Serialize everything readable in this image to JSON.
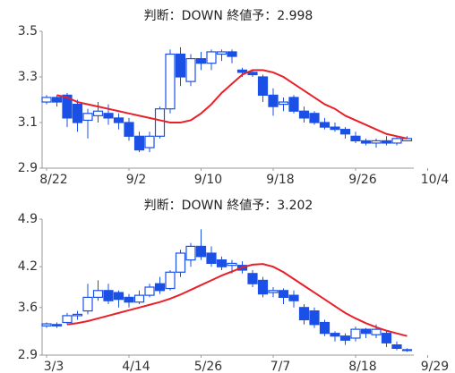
{
  "chart_data": [
    {
      "type": "candlestick",
      "title": "判断：DOWN 終値予：2.998",
      "color": "#1a50e6",
      "categories": [
        "8/22",
        null,
        null,
        null,
        null,
        null,
        null,
        null,
        "9/2",
        null,
        null,
        null,
        null,
        null,
        null,
        "9/10",
        null,
        null,
        null,
        null,
        null,
        null,
        "9/18",
        null,
        null,
        null,
        null,
        null,
        null,
        null,
        "9/26",
        null,
        null,
        null,
        null,
        null,
        null,
        "10/4"
      ],
      "open": [
        3.19,
        3.21,
        3.22,
        3.18,
        3.11,
        3.13,
        3.14,
        3.12,
        3.1,
        3.04,
        2.99,
        3.04,
        3.16,
        3.4,
        3.28,
        3.38,
        3.36,
        3.4,
        3.41,
        3.33,
        3.32,
        3.3,
        3.22,
        3.18,
        3.21,
        3.15,
        3.14,
        3.1,
        3.08,
        3.07,
        3.04,
        3.02,
        3.01,
        3.02,
        3.01,
        3.02,
        null,
        null
      ],
      "high": [
        3.22,
        3.22,
        3.23,
        3.2,
        3.16,
        3.19,
        3.18,
        3.14,
        3.12,
        3.06,
        3.06,
        3.17,
        3.42,
        3.43,
        3.4,
        3.41,
        3.42,
        3.42,
        3.42,
        3.34,
        3.33,
        3.31,
        3.25,
        3.21,
        3.22,
        3.17,
        3.15,
        3.12,
        3.1,
        3.08,
        3.06,
        3.03,
        3.03,
        3.04,
        3.04,
        3.04,
        null,
        null
      ],
      "low": [
        3.18,
        3.17,
        3.08,
        3.06,
        3.03,
        3.1,
        3.09,
        3.07,
        3.02,
        2.97,
        2.97,
        3.03,
        3.14,
        3.26,
        3.26,
        3.33,
        3.33,
        3.37,
        3.36,
        3.3,
        3.3,
        3.19,
        3.13,
        3.15,
        3.14,
        3.1,
        3.09,
        3.07,
        3.06,
        3.03,
        3.01,
        3.0,
        2.99,
        3.0,
        3.0,
        3.02,
        null,
        null
      ],
      "close": [
        3.21,
        3.19,
        3.12,
        3.1,
        3.14,
        3.15,
        3.12,
        3.1,
        3.04,
        2.98,
        3.04,
        3.16,
        3.4,
        3.3,
        3.38,
        3.36,
        3.41,
        3.41,
        3.39,
        3.32,
        3.31,
        3.22,
        3.17,
        3.19,
        3.15,
        3.12,
        3.1,
        3.08,
        3.07,
        3.05,
        3.02,
        3.01,
        3.02,
        3.01,
        3.03,
        3.03,
        null,
        null
      ],
      "line": {
        "color": "#e8202a",
        "values": [
          null,
          3.22,
          3.21,
          3.19,
          3.18,
          3.17,
          3.16,
          3.15,
          3.14,
          3.13,
          3.12,
          3.11,
          3.1,
          3.1,
          3.11,
          3.14,
          3.18,
          3.23,
          3.27,
          3.31,
          3.33,
          3.33,
          3.32,
          3.3,
          3.27,
          3.24,
          3.21,
          3.18,
          3.16,
          3.13,
          3.11,
          3.09,
          3.07,
          3.05,
          3.04,
          3.03,
          null,
          null
        ]
      },
      "ylim": [
        2.9,
        3.5
      ],
      "yticks": [
        2.9,
        3.1,
        3.3,
        3.5
      ]
    },
    {
      "type": "candlestick",
      "title": "判断：DOWN 終値予：3.202",
      "color": "#1a50e6",
      "categories": [
        "3/3",
        null,
        null,
        null,
        null,
        null,
        null,
        null,
        "4/14",
        null,
        null,
        null,
        null,
        null,
        null,
        "5/26",
        null,
        null,
        null,
        null,
        null,
        null,
        "7/7",
        null,
        null,
        null,
        null,
        null,
        null,
        null,
        "8/18",
        null,
        null,
        null,
        null,
        null,
        null,
        "9/29"
      ],
      "open": [
        3.33,
        3.35,
        3.38,
        3.48,
        3.55,
        3.75,
        3.85,
        3.82,
        3.75,
        3.68,
        3.78,
        3.95,
        3.88,
        4.12,
        4.3,
        4.5,
        4.4,
        4.3,
        4.22,
        4.22,
        4.1,
        4.0,
        3.82,
        3.85,
        3.78,
        3.6,
        3.55,
        3.38,
        3.22,
        3.18,
        3.15,
        3.28,
        3.2,
        3.22,
        3.05,
        2.98,
        null,
        null
      ],
      "high": [
        3.38,
        3.38,
        3.52,
        3.55,
        3.95,
        4.0,
        3.95,
        3.85,
        3.8,
        3.85,
        3.95,
        4.05,
        4.15,
        4.45,
        4.55,
        4.75,
        4.5,
        4.35,
        4.3,
        4.28,
        4.15,
        4.05,
        3.9,
        3.88,
        3.85,
        3.65,
        3.6,
        3.42,
        3.25,
        3.22,
        3.32,
        3.3,
        3.35,
        3.25,
        3.1,
        3.0,
        null,
        null
      ],
      "low": [
        3.3,
        3.3,
        3.35,
        3.42,
        3.5,
        3.7,
        3.65,
        3.6,
        3.6,
        3.65,
        3.75,
        3.8,
        3.85,
        4.05,
        4.2,
        4.3,
        4.2,
        4.15,
        4.1,
        4.1,
        3.9,
        3.75,
        3.75,
        3.65,
        3.6,
        3.35,
        3.3,
        3.18,
        3.1,
        3.05,
        3.1,
        3.15,
        3.15,
        3.02,
        2.97,
        2.95,
        null,
        null
      ],
      "close": [
        3.36,
        3.33,
        3.48,
        3.5,
        3.75,
        3.85,
        3.7,
        3.72,
        3.68,
        3.78,
        3.9,
        3.85,
        4.12,
        4.4,
        4.5,
        4.35,
        4.25,
        4.2,
        4.25,
        4.15,
        3.95,
        3.8,
        3.85,
        3.75,
        3.7,
        3.42,
        3.35,
        3.22,
        3.18,
        3.12,
        3.28,
        3.22,
        3.28,
        3.08,
        3.0,
        2.97,
        null,
        null
      ],
      "line": {
        "color": "#e8202a",
        "values": [
          null,
          null,
          3.35,
          3.37,
          3.4,
          3.44,
          3.48,
          3.52,
          3.56,
          3.6,
          3.64,
          3.68,
          3.73,
          3.79,
          3.86,
          3.93,
          4.0,
          4.07,
          4.13,
          4.19,
          4.23,
          4.24,
          4.2,
          4.12,
          4.02,
          3.92,
          3.82,
          3.72,
          3.62,
          3.52,
          3.44,
          3.37,
          3.31,
          3.26,
          3.22,
          3.18,
          null,
          null
        ]
      },
      "ylim": [
        2.9,
        4.9
      ],
      "yticks": [
        2.9,
        3.6,
        4.2,
        4.9
      ]
    }
  ]
}
